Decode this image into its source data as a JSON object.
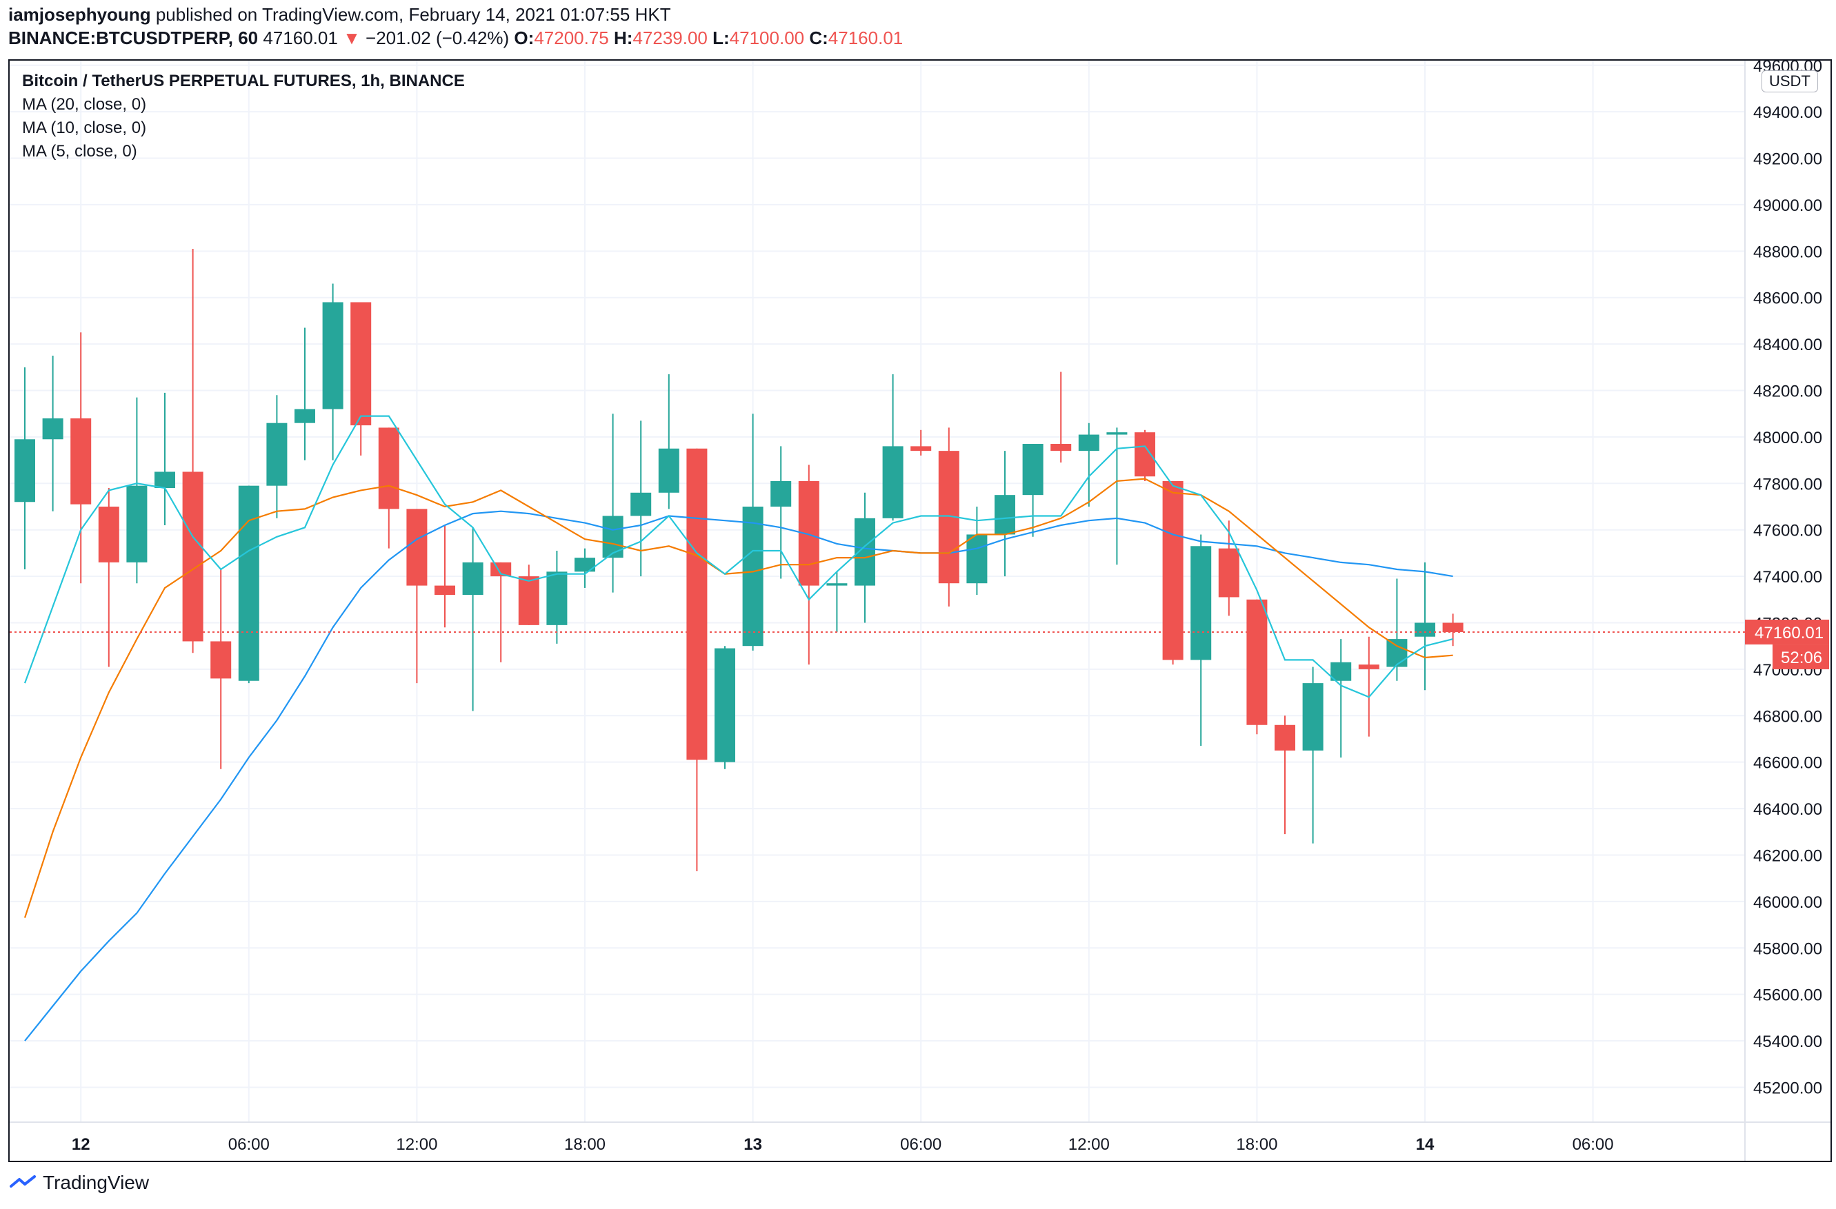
{
  "header": {
    "author": "iamjosephyoung",
    "published_text": "published on TradingView.com, February 14, 2021 01:07:55 HKT",
    "symbol": "BINANCE:BTCUSDTPERP, 60",
    "last": "47160.01",
    "change": "−201.02 (−0.42%)",
    "o_label": "O:",
    "o": "47200.75",
    "h_label": "H:",
    "h": "47239.00",
    "l_label": "L:",
    "l": "47100.00",
    "c_label": "C:",
    "c": "47160.01"
  },
  "legend": {
    "title": "Bitcoin / TetherUS PERPETUAL FUTURES, 1h, BINANCE",
    "ma20": "MA (20, close, 0)",
    "ma10": "MA (10, close, 0)",
    "ma5": "MA (5, close, 0)"
  },
  "currency_badge": "USDT",
  "last_price_label": "47160.01",
  "countdown_label": "52:06",
  "footer": {
    "brand": "TradingView"
  },
  "colors": {
    "up": "#26a69a",
    "down": "#ef5350",
    "ma20": "#2196f3",
    "ma10": "#f57c00",
    "ma5": "#26c6da",
    "grid": "#f0f3fa"
  },
  "chart_data": {
    "type": "candlestick",
    "ylim": [
      45050,
      49620
    ],
    "y_ticks": [
      45200,
      45400,
      45600,
      45800,
      46000,
      46200,
      46400,
      46600,
      46800,
      47000,
      47200,
      47400,
      47600,
      47800,
      48000,
      48200,
      48400,
      48600,
      48800,
      49000,
      49200,
      49400,
      49600
    ],
    "y_tick_labels": [
      "45200.00",
      "45400.00",
      "45600.00",
      "45800.00",
      "46000.00",
      "46200.00",
      "46400.00",
      "46600.00",
      "46800.00",
      "47000.00",
      "47200.00",
      "47400.00",
      "47600.00",
      "47800.00",
      "48000.00",
      "48200.00",
      "48400.00",
      "48600.00",
      "48800.00",
      "49000.00",
      "49200.00",
      "49400.00",
      "49600.00"
    ],
    "x_labels": [
      {
        "label": "12",
        "bar": 2,
        "bold": true
      },
      {
        "label": "06:00",
        "bar": 8,
        "bold": false
      },
      {
        "label": "12:00",
        "bar": 14,
        "bold": false
      },
      {
        "label": "18:00",
        "bar": 20,
        "bold": false
      },
      {
        "label": "13",
        "bar": 26,
        "bold": true
      },
      {
        "label": "06:00",
        "bar": 32,
        "bold": false
      },
      {
        "label": "12:00",
        "bar": 38,
        "bold": false
      },
      {
        "label": "18:00",
        "bar": 44,
        "bold": false
      },
      {
        "label": "14",
        "bar": 50,
        "bold": true
      },
      {
        "label": "06:00",
        "bar": 56,
        "bold": false
      }
    ],
    "x_slots": 62,
    "last_price": 47160.01,
    "ohlc": [
      [
        47720,
        48300,
        47430,
        47990
      ],
      [
        47990,
        48350,
        47680,
        48080
      ],
      [
        48080,
        48450,
        47370,
        47710
      ],
      [
        47700,
        47780,
        47010,
        47460
      ],
      [
        47460,
        48170,
        47370,
        47790
      ],
      [
        47780,
        48190,
        47620,
        47850
      ],
      [
        47850,
        48810,
        47070,
        47120
      ],
      [
        47120,
        47430,
        46570,
        46960
      ],
      [
        46950,
        47790,
        46940,
        47790
      ],
      [
        47790,
        48180,
        47650,
        48060
      ],
      [
        48060,
        48470,
        47900,
        48120
      ],
      [
        48120,
        48660,
        47900,
        48580
      ],
      [
        48580,
        48580,
        47920,
        48050
      ],
      [
        48040,
        48040,
        47520,
        47690
      ],
      [
        47690,
        47690,
        46940,
        47360
      ],
      [
        47360,
        47620,
        47180,
        47320
      ],
      [
        47320,
        47610,
        46820,
        47460
      ],
      [
        47460,
        47460,
        47030,
        47400
      ],
      [
        47400,
        47450,
        47190,
        47190
      ],
      [
        47190,
        47510,
        47110,
        47420
      ],
      [
        47420,
        47520,
        47350,
        47480
      ],
      [
        47480,
        48100,
        47330,
        47660
      ],
      [
        47660,
        48070,
        47400,
        47760
      ],
      [
        47760,
        48270,
        47690,
        47950
      ],
      [
        47950,
        47950,
        46130,
        46610
      ],
      [
        46600,
        47100,
        46570,
        47090
      ],
      [
        47100,
        48100,
        47080,
        47700
      ],
      [
        47700,
        47960,
        47390,
        47810
      ],
      [
        47810,
        47880,
        47020,
        47360
      ],
      [
        47360,
        47420,
        47160,
        47370
      ],
      [
        47360,
        47760,
        47200,
        47650
      ],
      [
        47650,
        48270,
        47640,
        47960
      ],
      [
        47960,
        48030,
        47920,
        47940
      ],
      [
        47940,
        48040,
        47270,
        47370
      ],
      [
        47370,
        47700,
        47320,
        47580
      ],
      [
        47580,
        47940,
        47400,
        47750
      ],
      [
        47750,
        47970,
        47570,
        47970
      ],
      [
        47970,
        48280,
        47890,
        47940
      ],
      [
        47940,
        48060,
        47700,
        48010
      ],
      [
        48010,
        48040,
        47450,
        48020
      ],
      [
        48020,
        48030,
        47810,
        47830
      ],
      [
        47810,
        47810,
        47020,
        47040
      ],
      [
        47040,
        47580,
        46670,
        47530
      ],
      [
        47520,
        47640,
        47230,
        47310
      ],
      [
        47300,
        47300,
        46720,
        46760
      ],
      [
        46760,
        46800,
        46290,
        46650
      ],
      [
        46650,
        47010,
        46250,
        46940
      ],
      [
        46950,
        47130,
        46620,
        47030
      ],
      [
        47020,
        47140,
        46710,
        47000
      ],
      [
        47010,
        47390,
        46950,
        47130
      ],
      [
        47140,
        47460,
        46910,
        47200
      ],
      [
        47200,
        47239,
        47100,
        47160.01
      ]
    ],
    "series": [
      {
        "name": "MA (20, close, 0)",
        "color": "#2196f3",
        "values": [
          45400,
          45550,
          45700,
          45830,
          45950,
          46120,
          46280,
          46440,
          46620,
          46780,
          46970,
          47180,
          47350,
          47470,
          47560,
          47620,
          47670,
          47680,
          47670,
          47650,
          47630,
          47600,
          47620,
          47660,
          47650,
          47640,
          47630,
          47610,
          47580,
          47540,
          47520,
          47510,
          47500,
          47500,
          47520,
          47560,
          47590,
          47620,
          47640,
          47650,
          47630,
          47580,
          47550,
          47540,
          47530,
          47500,
          47480,
          47460,
          47450,
          47430,
          47420,
          47400
        ]
      },
      {
        "name": "MA (10, close, 0)",
        "color": "#f57c00",
        "values": [
          45930,
          46300,
          46620,
          46900,
          47130,
          47350,
          47430,
          47510,
          47640,
          47680,
          47690,
          47740,
          47770,
          47790,
          47750,
          47700,
          47720,
          47770,
          47700,
          47630,
          47560,
          47540,
          47510,
          47530,
          47490,
          47410,
          47420,
          47450,
          47450,
          47480,
          47480,
          47510,
          47500,
          47500,
          47580,
          47580,
          47610,
          47650,
          47720,
          47810,
          47820,
          47760,
          47750,
          47680,
          47580,
          47480,
          47380,
          47280,
          47180,
          47100,
          47050,
          47060
        ]
      },
      {
        "name": "MA (5, close, 0)",
        "color": "#26c6da",
        "values": [
          46940,
          47270,
          47600,
          47770,
          47800,
          47780,
          47570,
          47430,
          47510,
          47570,
          47610,
          47880,
          48090,
          48090,
          47900,
          47710,
          47610,
          47410,
          47380,
          47410,
          47410,
          47500,
          47550,
          47660,
          47500,
          47410,
          47510,
          47510,
          47300,
          47420,
          47530,
          47630,
          47660,
          47660,
          47640,
          47650,
          47660,
          47660,
          47830,
          47950,
          47960,
          47790,
          47750,
          47590,
          47340,
          47040,
          47040,
          46930,
          46880,
          47020,
          47100,
          47130
        ]
      }
    ]
  }
}
